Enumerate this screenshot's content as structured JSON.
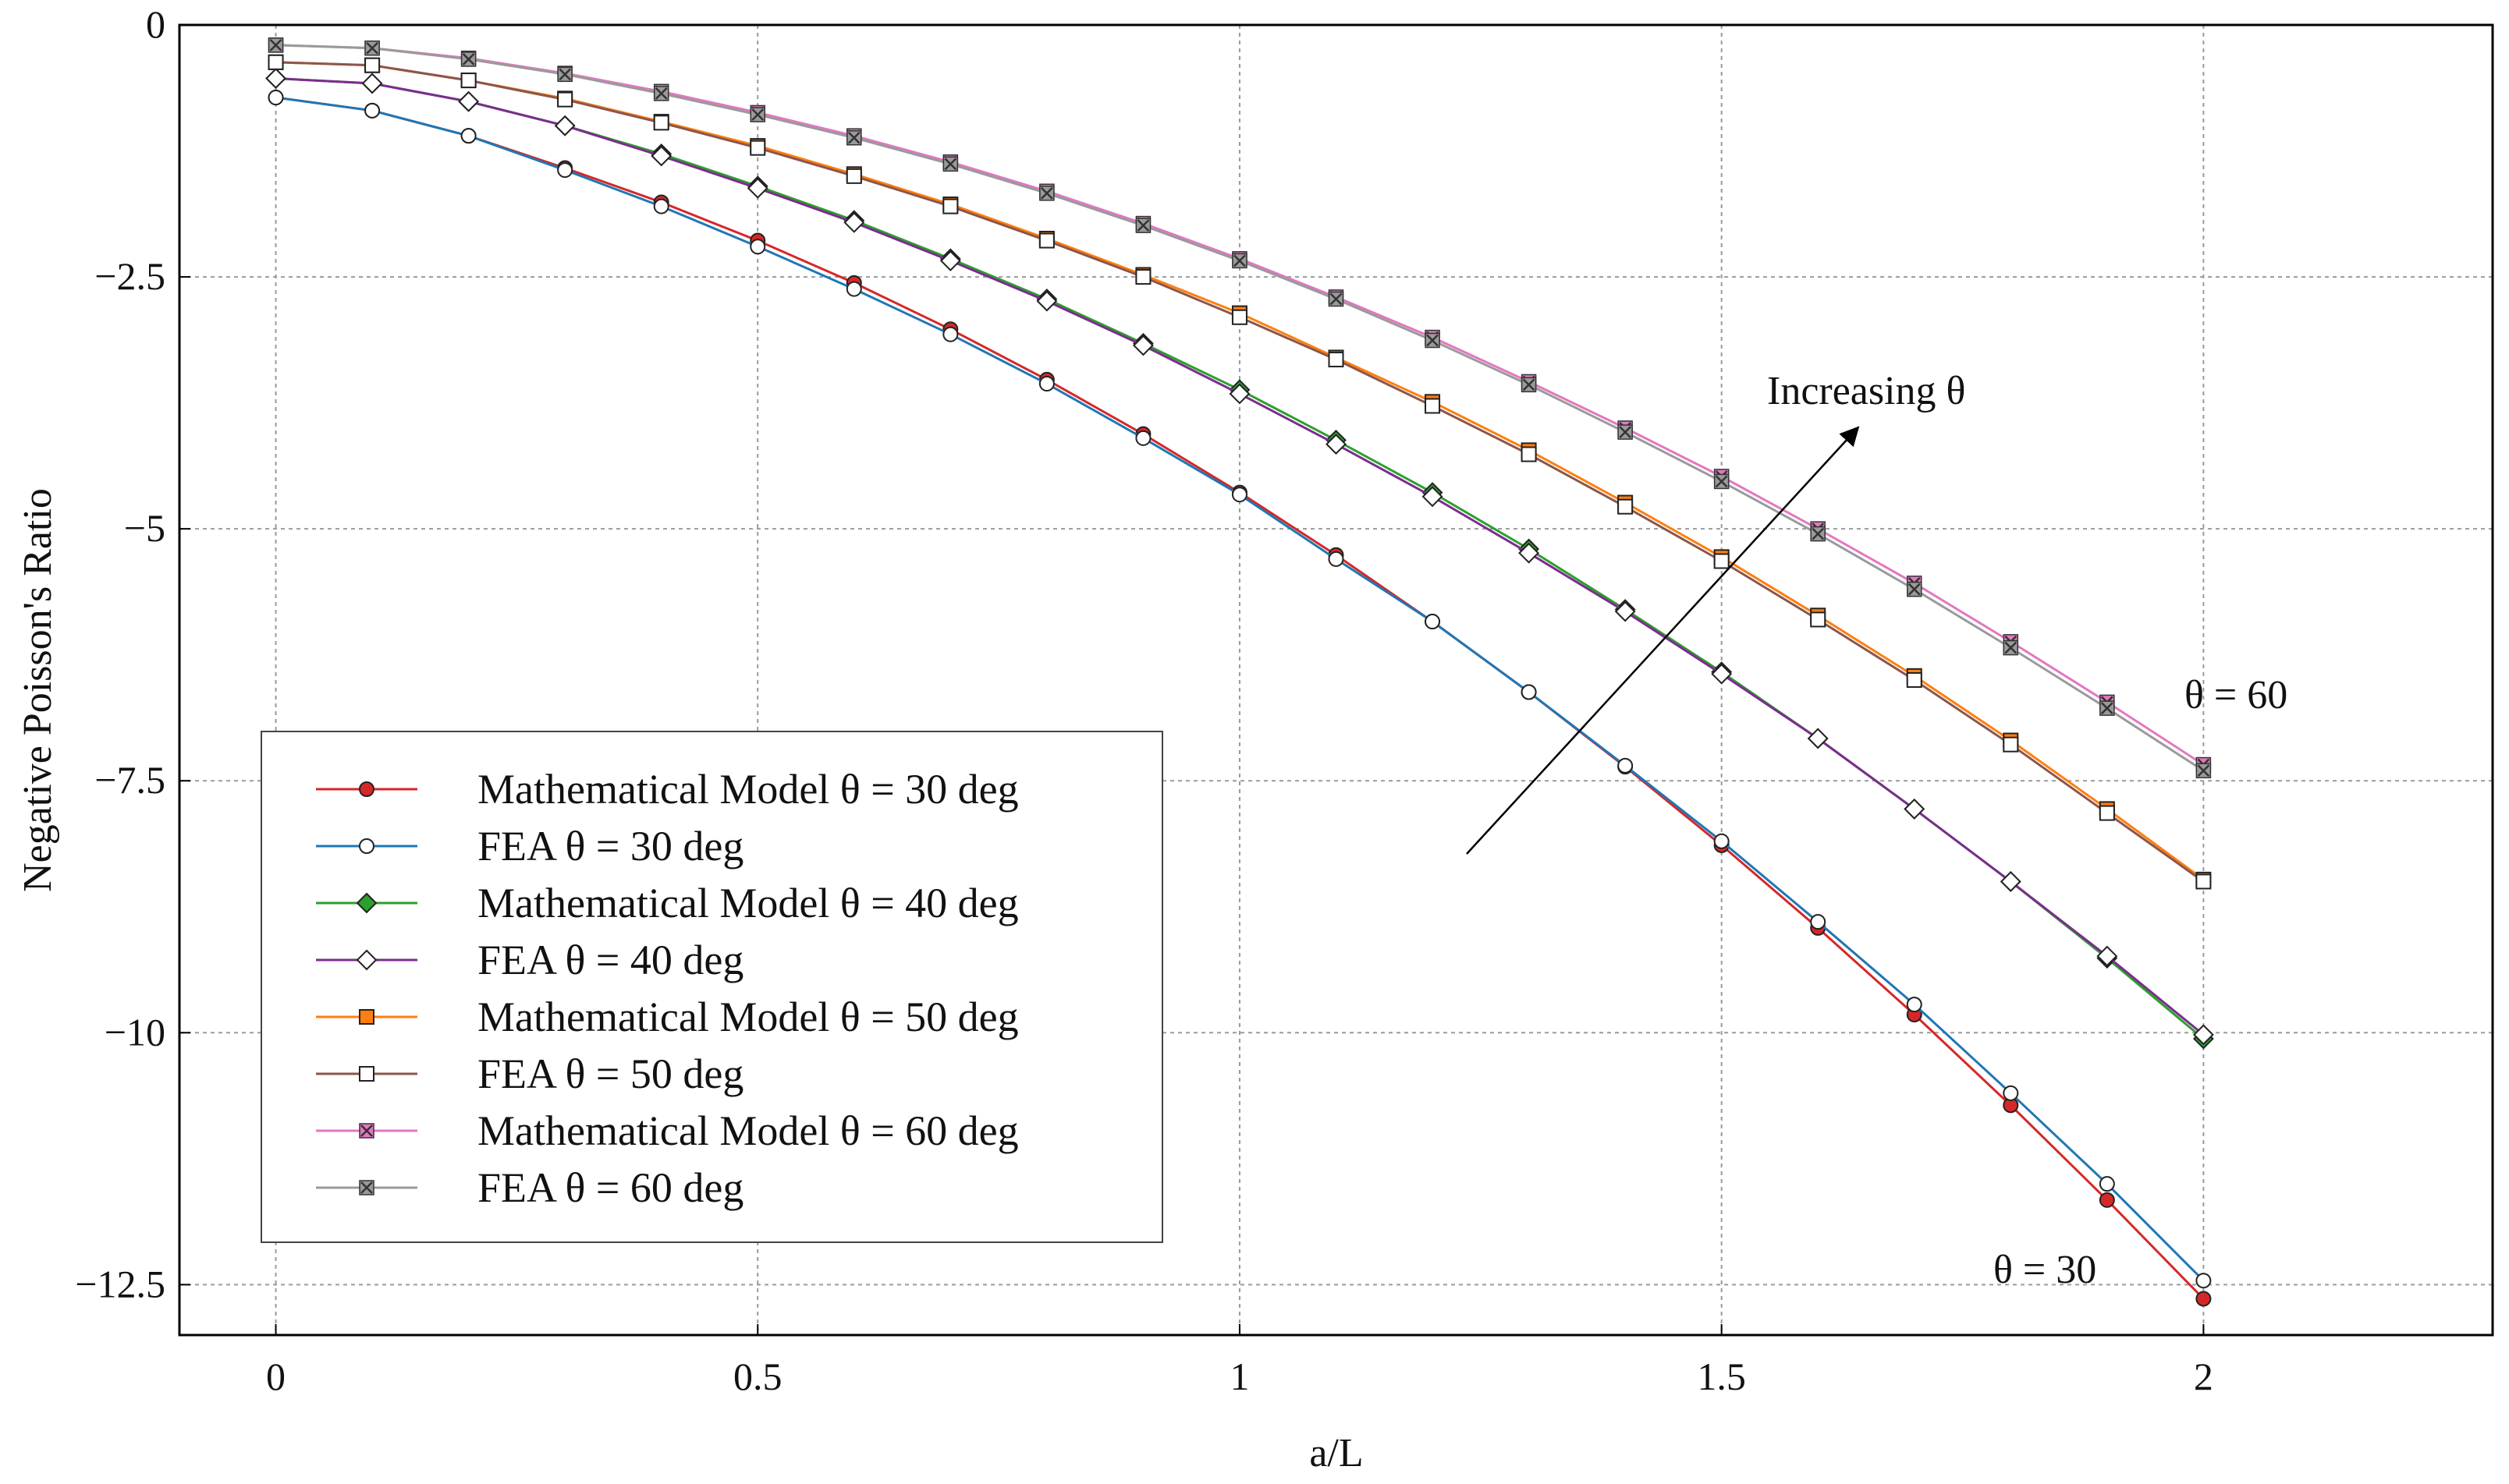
{
  "chart_data": {
    "type": "line",
    "title": "",
    "xlabel": "a/L",
    "ylabel": "Negative Poisson's Ratio",
    "xlim": [
      -0.1,
      2.3
    ],
    "ylim": [
      -13.0,
      0.0
    ],
    "xticks": [
      0,
      0.5,
      1,
      1.5,
      2
    ],
    "xtick_labels": [
      "0",
      "0.5",
      "1",
      "1.5",
      "2"
    ],
    "yticks": [
      0,
      -2.5,
      -5,
      -7.5,
      -10,
      -12.5
    ],
    "ytick_labels": [
      "0",
      "−2.5",
      "−5",
      "−7.5",
      "−10",
      "−12.5"
    ],
    "grid": true,
    "legend_position": "bottom-left",
    "x": [
      0,
      0.1,
      0.2,
      0.3,
      0.4,
      0.5,
      0.6,
      0.7,
      0.8,
      0.9,
      1.0,
      1.1,
      1.2,
      1.3,
      1.4,
      1.5,
      1.6,
      1.7,
      1.8,
      1.9,
      2.0
    ],
    "series": [
      {
        "name": "Mathematical Model θ = 30 deg",
        "color": "#d62728",
        "marker": "circle-filled",
        "values": [
          -0.72,
          -0.85,
          -1.1,
          -1.42,
          -1.76,
          -2.14,
          -2.56,
          -3.02,
          -3.52,
          -4.06,
          -4.64,
          -5.26,
          -5.92,
          -6.62,
          -7.36,
          -8.14,
          -8.96,
          -9.82,
          -10.72,
          -11.66,
          -12.64
        ]
      },
      {
        "name": "FEA θ = 30 deg",
        "color": "#1f77b4",
        "marker": "circle-open",
        "values": [
          -0.72,
          -0.85,
          -1.1,
          -1.44,
          -1.8,
          -2.2,
          -2.62,
          -3.07,
          -3.56,
          -4.1,
          -4.66,
          -5.3,
          -5.92,
          -6.62,
          -7.35,
          -8.1,
          -8.9,
          -9.72,
          -10.6,
          -11.5,
          -12.46
        ]
      },
      {
        "name": "Mathematical Model θ = 40 deg",
        "color": "#2ca02c",
        "marker": "diamond-filled",
        "values": [
          -0.53,
          -0.58,
          -0.76,
          -1.0,
          -1.28,
          -1.6,
          -1.94,
          -2.32,
          -2.72,
          -3.16,
          -3.62,
          -4.12,
          -4.64,
          -5.2,
          -5.8,
          -6.42,
          -7.08,
          -7.78,
          -8.5,
          -9.26,
          -10.06
        ]
      },
      {
        "name": "FEA θ = 40 deg",
        "color": "#7b2d8e",
        "marker": "diamond-open",
        "values": [
          -0.53,
          -0.58,
          -0.76,
          -1.0,
          -1.3,
          -1.62,
          -1.96,
          -2.34,
          -2.74,
          -3.18,
          -3.66,
          -4.16,
          -4.68,
          -5.24,
          -5.82,
          -6.44,
          -7.08,
          -7.78,
          -8.5,
          -9.24,
          -10.02
        ]
      },
      {
        "name": "Mathematical Model θ = 50 deg",
        "color": "#ff7f0e",
        "marker": "square-filled",
        "values": [
          -0.37,
          -0.4,
          -0.55,
          -0.73,
          -0.96,
          -1.2,
          -1.48,
          -1.78,
          -2.12,
          -2.48,
          -2.86,
          -3.3,
          -3.74,
          -4.22,
          -4.74,
          -5.28,
          -5.86,
          -6.46,
          -7.1,
          -7.78,
          -8.48
        ]
      },
      {
        "name": "FEA θ = 50 deg",
        "color": "#8c564b",
        "marker": "square-open",
        "values": [
          -0.37,
          -0.4,
          -0.55,
          -0.74,
          -0.97,
          -1.22,
          -1.5,
          -1.8,
          -2.14,
          -2.5,
          -2.9,
          -3.32,
          -3.78,
          -4.26,
          -4.78,
          -5.32,
          -5.9,
          -6.5,
          -7.14,
          -7.82,
          -8.5
        ]
      },
      {
        "name": "Mathematical Model θ = 60 deg",
        "color": "#e377c2",
        "marker": "x-square",
        "values": [
          -0.2,
          -0.23,
          -0.33,
          -0.48,
          -0.66,
          -0.87,
          -1.1,
          -1.36,
          -1.65,
          -1.97,
          -2.32,
          -2.7,
          -3.1,
          -3.54,
          -4.0,
          -4.48,
          -5.0,
          -5.54,
          -6.12,
          -6.72,
          -7.34
        ]
      },
      {
        "name": "FEA θ = 60 deg",
        "color": "#9a9a9a",
        "marker": "x-square",
        "values": [
          -0.2,
          -0.23,
          -0.34,
          -0.49,
          -0.68,
          -0.89,
          -1.12,
          -1.38,
          -1.67,
          -1.99,
          -2.34,
          -2.72,
          -3.13,
          -3.57,
          -4.04,
          -4.53,
          -5.05,
          -5.6,
          -6.18,
          -6.78,
          -7.4
        ]
      }
    ],
    "annotations": [
      {
        "text": "Increasing θ"
      },
      {
        "text": "θ = 60"
      },
      {
        "text": "θ = 30"
      }
    ]
  }
}
